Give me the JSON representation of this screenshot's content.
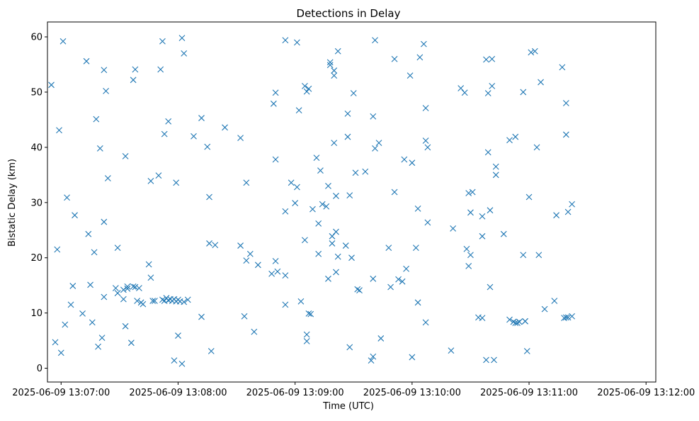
{
  "chart_data": {
    "type": "scatter",
    "title": "Detections in Delay",
    "xlabel": "Time (UTC)",
    "ylabel": "Bistatic Delay (km)",
    "marker": "x",
    "color": "#1f77b4",
    "grid": false,
    "legend": "none",
    "x_axis_kind": "datetime",
    "xlim": [
      "2025-06-09 13:06:53",
      "2025-06-09 13:12:05"
    ],
    "ylim": [
      -2.5,
      62.7
    ],
    "x_ticks": [
      {
        "value": "2025-06-09 13:07:00",
        "label": "2025-06-09 13:07:00"
      },
      {
        "value": "2025-06-09 13:08:00",
        "label": "2025-06-09 13:08:00"
      },
      {
        "value": "2025-06-09 13:09:00",
        "label": "2025-06-09 13:09:00"
      },
      {
        "value": "2025-06-09 13:10:00",
        "label": "2025-06-09 13:10:00"
      },
      {
        "value": "2025-06-09 13:11:00",
        "label": "2025-06-09 13:11:00"
      },
      {
        "value": "2025-06-09 13:12:00",
        "label": "2025-06-09 13:12:00"
      }
    ],
    "y_ticks": [
      0,
      10,
      20,
      30,
      40,
      50,
      60
    ],
    "points": [
      {
        "x": "2025-06-09 13:06:55",
        "y": 51.3
      },
      {
        "x": "2025-06-09 13:06:57",
        "y": 4.7
      },
      {
        "x": "2025-06-09 13:06:58",
        "y": 21.5
      },
      {
        "x": "2025-06-09 13:06:59",
        "y": 43.1
      },
      {
        "x": "2025-06-09 13:07:00",
        "y": 2.8
      },
      {
        "x": "2025-06-09 13:07:01",
        "y": 59.2
      },
      {
        "x": "2025-06-09 13:07:02",
        "y": 7.9
      },
      {
        "x": "2025-06-09 13:07:03",
        "y": 30.9
      },
      {
        "x": "2025-06-09 13:07:05",
        "y": 11.5
      },
      {
        "x": "2025-06-09 13:07:06",
        "y": 14.9
      },
      {
        "x": "2025-06-09 13:07:07",
        "y": 27.7
      },
      {
        "x": "2025-06-09 13:07:11",
        "y": 9.9
      },
      {
        "x": "2025-06-09 13:07:13",
        "y": 55.6
      },
      {
        "x": "2025-06-09 13:07:14",
        "y": 24.3
      },
      {
        "x": "2025-06-09 13:07:15",
        "y": 15.1
      },
      {
        "x": "2025-06-09 13:07:16",
        "y": 8.3
      },
      {
        "x": "2025-06-09 13:07:17",
        "y": 21.0
      },
      {
        "x": "2025-06-09 13:07:18",
        "y": 45.1
      },
      {
        "x": "2025-06-09 13:07:19",
        "y": 3.9
      },
      {
        "x": "2025-06-09 13:07:20",
        "y": 39.8
      },
      {
        "x": "2025-06-09 13:07:21",
        "y": 5.5
      },
      {
        "x": "2025-06-09 13:07:22",
        "y": 54.0
      },
      {
        "x": "2025-06-09 13:07:22",
        "y": 26.5
      },
      {
        "x": "2025-06-09 13:07:22",
        "y": 12.9
      },
      {
        "x": "2025-06-09 13:07:23",
        "y": 50.2
      },
      {
        "x": "2025-06-09 13:07:24",
        "y": 34.4
      },
      {
        "x": "2025-06-09 13:07:28",
        "y": 14.5
      },
      {
        "x": "2025-06-09 13:07:29",
        "y": 21.8
      },
      {
        "x": "2025-06-09 13:07:29",
        "y": 13.6
      },
      {
        "x": "2025-06-09 13:07:32",
        "y": 12.5
      },
      {
        "x": "2025-06-09 13:07:32",
        "y": 14.2
      },
      {
        "x": "2025-06-09 13:07:33",
        "y": 38.4
      },
      {
        "x": "2025-06-09 13:07:33",
        "y": 7.6
      },
      {
        "x": "2025-06-09 13:07:34",
        "y": 14.4
      },
      {
        "x": "2025-06-09 13:07:34",
        "y": 14.8
      },
      {
        "x": "2025-06-09 13:07:36",
        "y": 4.6
      },
      {
        "x": "2025-06-09 13:07:37",
        "y": 52.2
      },
      {
        "x": "2025-06-09 13:07:37",
        "y": 14.8
      },
      {
        "x": "2025-06-09 13:07:38",
        "y": 54.1
      },
      {
        "x": "2025-06-09 13:07:38",
        "y": 14.7
      },
      {
        "x": "2025-06-09 13:07:39",
        "y": 12.2
      },
      {
        "x": "2025-06-09 13:07:40",
        "y": 14.5
      },
      {
        "x": "2025-06-09 13:07:41",
        "y": 11.9
      },
      {
        "x": "2025-06-09 13:07:42",
        "y": 11.6
      },
      {
        "x": "2025-06-09 13:07:45",
        "y": 18.8
      },
      {
        "x": "2025-06-09 13:07:46",
        "y": 33.9
      },
      {
        "x": "2025-06-09 13:07:46",
        "y": 16.4
      },
      {
        "x": "2025-06-09 13:07:47",
        "y": 12.2
      },
      {
        "x": "2025-06-09 13:07:48",
        "y": 12.2
      },
      {
        "x": "2025-06-09 13:07:50",
        "y": 34.9
      },
      {
        "x": "2025-06-09 13:07:51",
        "y": 54.1
      },
      {
        "x": "2025-06-09 13:07:52",
        "y": 12.4
      },
      {
        "x": "2025-06-09 13:07:52",
        "y": 59.2
      },
      {
        "x": "2025-06-09 13:07:53",
        "y": 42.4
      },
      {
        "x": "2025-06-09 13:07:53",
        "y": 12.2
      },
      {
        "x": "2025-06-09 13:07:54",
        "y": 12.7
      },
      {
        "x": "2025-06-09 13:07:55",
        "y": 12.3
      },
      {
        "x": "2025-06-09 13:07:55",
        "y": 44.7
      },
      {
        "x": "2025-06-09 13:07:56",
        "y": 12.5
      },
      {
        "x": "2025-06-09 13:07:57",
        "y": 12.2
      },
      {
        "x": "2025-06-09 13:07:58",
        "y": 12.5
      },
      {
        "x": "2025-06-09 13:07:58",
        "y": 1.4
      },
      {
        "x": "2025-06-09 13:07:59",
        "y": 12.1
      },
      {
        "x": "2025-06-09 13:07:59",
        "y": 33.6
      },
      {
        "x": "2025-06-09 13:08:00",
        "y": 12.4
      },
      {
        "x": "2025-06-09 13:08:00",
        "y": 5.9
      },
      {
        "x": "2025-06-09 13:08:01",
        "y": 12.1
      },
      {
        "x": "2025-06-09 13:08:02",
        "y": 59.8
      },
      {
        "x": "2025-06-09 13:08:02",
        "y": 0.8
      },
      {
        "x": "2025-06-09 13:08:03",
        "y": 12.0
      },
      {
        "x": "2025-06-09 13:08:03",
        "y": 57.0
      },
      {
        "x": "2025-06-09 13:08:05",
        "y": 12.4
      },
      {
        "x": "2025-06-09 13:08:08",
        "y": 42.0
      },
      {
        "x": "2025-06-09 13:08:12",
        "y": 9.3
      },
      {
        "x": "2025-06-09 13:08:12",
        "y": 45.3
      },
      {
        "x": "2025-06-09 13:08:15",
        "y": 40.1
      },
      {
        "x": "2025-06-09 13:08:16",
        "y": 22.6
      },
      {
        "x": "2025-06-09 13:08:16",
        "y": 31.0
      },
      {
        "x": "2025-06-09 13:08:17",
        "y": 3.1
      },
      {
        "x": "2025-06-09 13:08:19",
        "y": 22.3
      },
      {
        "x": "2025-06-09 13:08:24",
        "y": 43.6
      },
      {
        "x": "2025-06-09 13:08:32",
        "y": 41.7
      },
      {
        "x": "2025-06-09 13:08:32",
        "y": 22.2
      },
      {
        "x": "2025-06-09 13:08:34",
        "y": 9.4
      },
      {
        "x": "2025-06-09 13:08:35",
        "y": 19.5
      },
      {
        "x": "2025-06-09 13:08:35",
        "y": 33.6
      },
      {
        "x": "2025-06-09 13:08:37",
        "y": 20.7
      },
      {
        "x": "2025-06-09 13:08:39",
        "y": 6.6
      },
      {
        "x": "2025-06-09 13:08:41",
        "y": 18.7
      },
      {
        "x": "2025-06-09 13:08:48",
        "y": 17.1
      },
      {
        "x": "2025-06-09 13:08:49",
        "y": 47.9
      },
      {
        "x": "2025-06-09 13:08:50",
        "y": 49.9
      },
      {
        "x": "2025-06-09 13:08:50",
        "y": 37.8
      },
      {
        "x": "2025-06-09 13:08:50",
        "y": 19.4
      },
      {
        "x": "2025-06-09 13:08:51",
        "y": 17.5
      },
      {
        "x": "2025-06-09 13:08:55",
        "y": 28.4
      },
      {
        "x": "2025-06-09 13:08:55",
        "y": 59.4
      },
      {
        "x": "2025-06-09 13:08:55",
        "y": 16.8
      },
      {
        "x": "2025-06-09 13:08:55",
        "y": 11.5
      },
      {
        "x": "2025-06-09 13:08:58",
        "y": 33.6
      },
      {
        "x": "2025-06-09 13:09:00",
        "y": 29.9
      },
      {
        "x": "2025-06-09 13:09:01",
        "y": 59.0
      },
      {
        "x": "2025-06-09 13:09:01",
        "y": 32.8
      },
      {
        "x": "2025-06-09 13:09:02",
        "y": 46.7
      },
      {
        "x": "2025-06-09 13:09:03",
        "y": 12.1
      },
      {
        "x": "2025-06-09 13:09:05",
        "y": 51.1
      },
      {
        "x": "2025-06-09 13:09:05",
        "y": 23.2
      },
      {
        "x": "2025-06-09 13:09:06",
        "y": 50.1
      },
      {
        "x": "2025-06-09 13:09:06",
        "y": 4.9
      },
      {
        "x": "2025-06-09 13:09:06",
        "y": 6.1
      },
      {
        "x": "2025-06-09 13:09:07",
        "y": 50.6
      },
      {
        "x": "2025-06-09 13:09:07",
        "y": 9.9
      },
      {
        "x": "2025-06-09 13:09:08",
        "y": 9.8
      },
      {
        "x": "2025-06-09 13:09:09",
        "y": 28.8
      },
      {
        "x": "2025-06-09 13:09:11",
        "y": 38.1
      },
      {
        "x": "2025-06-09 13:09:12",
        "y": 26.2
      },
      {
        "x": "2025-06-09 13:09:12",
        "y": 20.7
      },
      {
        "x": "2025-06-09 13:09:13",
        "y": 35.8
      },
      {
        "x": "2025-06-09 13:09:14",
        "y": 29.7
      },
      {
        "x": "2025-06-09 13:09:16",
        "y": 29.3
      },
      {
        "x": "2025-06-09 13:09:17",
        "y": 16.2
      },
      {
        "x": "2025-06-09 13:09:17",
        "y": 33.0
      },
      {
        "x": "2025-06-09 13:09:18",
        "y": 55.4
      },
      {
        "x": "2025-06-09 13:09:18",
        "y": 54.9
      },
      {
        "x": "2025-06-09 13:09:19",
        "y": 23.9
      },
      {
        "x": "2025-06-09 13:09:19",
        "y": 22.6
      },
      {
        "x": "2025-06-09 13:09:20",
        "y": 53.9
      },
      {
        "x": "2025-06-09 13:09:20",
        "y": 53.0
      },
      {
        "x": "2025-06-09 13:09:20",
        "y": 40.8
      },
      {
        "x": "2025-06-09 13:09:21",
        "y": 24.7
      },
      {
        "x": "2025-06-09 13:09:21",
        "y": 31.2
      },
      {
        "x": "2025-06-09 13:09:21",
        "y": 17.4
      },
      {
        "x": "2025-06-09 13:09:22",
        "y": 57.4
      },
      {
        "x": "2025-06-09 13:09:22",
        "y": 20.2
      },
      {
        "x": "2025-06-09 13:09:26",
        "y": 22.2
      },
      {
        "x": "2025-06-09 13:09:27",
        "y": 46.1
      },
      {
        "x": "2025-06-09 13:09:27",
        "y": 41.9
      },
      {
        "x": "2025-06-09 13:09:28",
        "y": 31.3
      },
      {
        "x": "2025-06-09 13:09:28",
        "y": 3.8
      },
      {
        "x": "2025-06-09 13:09:29",
        "y": 20.0
      },
      {
        "x": "2025-06-09 13:09:30",
        "y": 49.8
      },
      {
        "x": "2025-06-09 13:09:31",
        "y": 35.4
      },
      {
        "x": "2025-06-09 13:09:32",
        "y": 14.3
      },
      {
        "x": "2025-06-09 13:09:33",
        "y": 14.1
      },
      {
        "x": "2025-06-09 13:09:36",
        "y": 35.6
      },
      {
        "x": "2025-06-09 13:09:39",
        "y": 1.4
      },
      {
        "x": "2025-06-09 13:09:40",
        "y": 16.2
      },
      {
        "x": "2025-06-09 13:09:40",
        "y": 45.6
      },
      {
        "x": "2025-06-09 13:09:40",
        "y": 2.1
      },
      {
        "x": "2025-06-09 13:09:41",
        "y": 59.4
      },
      {
        "x": "2025-06-09 13:09:41",
        "y": 39.8
      },
      {
        "x": "2025-06-09 13:09:43",
        "y": 40.8
      },
      {
        "x": "2025-06-09 13:09:44",
        "y": 5.4
      },
      {
        "x": "2025-06-09 13:09:48",
        "y": 21.8
      },
      {
        "x": "2025-06-09 13:09:49",
        "y": 14.7
      },
      {
        "x": "2025-06-09 13:09:51",
        "y": 56.0
      },
      {
        "x": "2025-06-09 13:09:51",
        "y": 31.9
      },
      {
        "x": "2025-06-09 13:09:53",
        "y": 16.1
      },
      {
        "x": "2025-06-09 13:09:55",
        "y": 15.7
      },
      {
        "x": "2025-06-09 13:09:56",
        "y": 37.8
      },
      {
        "x": "2025-06-09 13:09:57",
        "y": 18.0
      },
      {
        "x": "2025-06-09 13:09:59",
        "y": 53.0
      },
      {
        "x": "2025-06-09 13:10:00",
        "y": 37.2
      },
      {
        "x": "2025-06-09 13:10:00",
        "y": 2.0
      },
      {
        "x": "2025-06-09 13:10:02",
        "y": 21.8
      },
      {
        "x": "2025-06-09 13:10:03",
        "y": 28.9
      },
      {
        "x": "2025-06-09 13:10:03",
        "y": 11.9
      },
      {
        "x": "2025-06-09 13:10:04",
        "y": 56.3
      },
      {
        "x": "2025-06-09 13:10:06",
        "y": 58.7
      },
      {
        "x": "2025-06-09 13:10:07",
        "y": 47.1
      },
      {
        "x": "2025-06-09 13:10:07",
        "y": 41.2
      },
      {
        "x": "2025-06-09 13:10:07",
        "y": 8.3
      },
      {
        "x": "2025-06-09 13:10:08",
        "y": 40.0
      },
      {
        "x": "2025-06-09 13:10:08",
        "y": 26.4
      },
      {
        "x": "2025-06-09 13:10:20",
        "y": 3.2
      },
      {
        "x": "2025-06-09 13:10:21",
        "y": 25.3
      },
      {
        "x": "2025-06-09 13:10:25",
        "y": 50.7
      },
      {
        "x": "2025-06-09 13:10:27",
        "y": 49.9
      },
      {
        "x": "2025-06-09 13:10:28",
        "y": 21.6
      },
      {
        "x": "2025-06-09 13:10:29",
        "y": 18.5
      },
      {
        "x": "2025-06-09 13:10:29",
        "y": 31.7
      },
      {
        "x": "2025-06-09 13:10:30",
        "y": 28.2
      },
      {
        "x": "2025-06-09 13:10:30",
        "y": 20.5
      },
      {
        "x": "2025-06-09 13:10:31",
        "y": 31.9
      },
      {
        "x": "2025-06-09 13:10:34",
        "y": 9.2
      },
      {
        "x": "2025-06-09 13:10:36",
        "y": 9.1
      },
      {
        "x": "2025-06-09 13:10:36",
        "y": 27.5
      },
      {
        "x": "2025-06-09 13:10:36",
        "y": 23.9
      },
      {
        "x": "2025-06-09 13:10:38",
        "y": 55.9
      },
      {
        "x": "2025-06-09 13:10:38",
        "y": 1.5
      },
      {
        "x": "2025-06-09 13:10:39",
        "y": 49.8
      },
      {
        "x": "2025-06-09 13:10:39",
        "y": 39.1
      },
      {
        "x": "2025-06-09 13:10:40",
        "y": 28.6
      },
      {
        "x": "2025-06-09 13:10:40",
        "y": 14.7
      },
      {
        "x": "2025-06-09 13:10:41",
        "y": 56.0
      },
      {
        "x": "2025-06-09 13:10:41",
        "y": 51.1
      },
      {
        "x": "2025-06-09 13:10:42",
        "y": 1.5
      },
      {
        "x": "2025-06-09 13:10:43",
        "y": 36.5
      },
      {
        "x": "2025-06-09 13:10:43",
        "y": 35.0
      },
      {
        "x": "2025-06-09 13:10:47",
        "y": 24.3
      },
      {
        "x": "2025-06-09 13:10:50",
        "y": 41.3
      },
      {
        "x": "2025-06-09 13:10:50",
        "y": 8.8
      },
      {
        "x": "2025-06-09 13:10:52",
        "y": 8.4
      },
      {
        "x": "2025-06-09 13:10:53",
        "y": 41.9
      },
      {
        "x": "2025-06-09 13:10:53",
        "y": 8.2
      },
      {
        "x": "2025-06-09 13:10:54",
        "y": 8.2
      },
      {
        "x": "2025-06-09 13:10:55",
        "y": 8.4
      },
      {
        "x": "2025-06-09 13:10:57",
        "y": 50.0
      },
      {
        "x": "2025-06-09 13:10:57",
        "y": 20.5
      },
      {
        "x": "2025-06-09 13:10:58",
        "y": 8.5
      },
      {
        "x": "2025-06-09 13:10:58",
        "y": 8.5
      },
      {
        "x": "2025-06-09 13:10:59",
        "y": 3.1
      },
      {
        "x": "2025-06-09 13:11:00",
        "y": 31.0
      },
      {
        "x": "2025-06-09 13:11:01",
        "y": 57.2
      },
      {
        "x": "2025-06-09 13:11:03",
        "y": 57.4
      },
      {
        "x": "2025-06-09 13:11:04",
        "y": 40.0
      },
      {
        "x": "2025-06-09 13:11:05",
        "y": 20.5
      },
      {
        "x": "2025-06-09 13:11:06",
        "y": 51.8
      },
      {
        "x": "2025-06-09 13:11:08",
        "y": 10.7
      },
      {
        "x": "2025-06-09 13:11:13",
        "y": 12.2
      },
      {
        "x": "2025-06-09 13:11:14",
        "y": 27.7
      },
      {
        "x": "2025-06-09 13:11:17",
        "y": 54.5
      },
      {
        "x": "2025-06-09 13:11:18",
        "y": 9.1
      },
      {
        "x": "2025-06-09 13:11:19",
        "y": 9.2
      },
      {
        "x": "2025-06-09 13:11:19",
        "y": 48.0
      },
      {
        "x": "2025-06-09 13:11:19",
        "y": 42.3
      },
      {
        "x": "2025-06-09 13:11:20",
        "y": 9.2
      },
      {
        "x": "2025-06-09 13:11:20",
        "y": 28.3
      },
      {
        "x": "2025-06-09 13:11:22",
        "y": 9.4
      },
      {
        "x": "2025-06-09 13:11:22",
        "y": 29.7
      }
    ]
  }
}
